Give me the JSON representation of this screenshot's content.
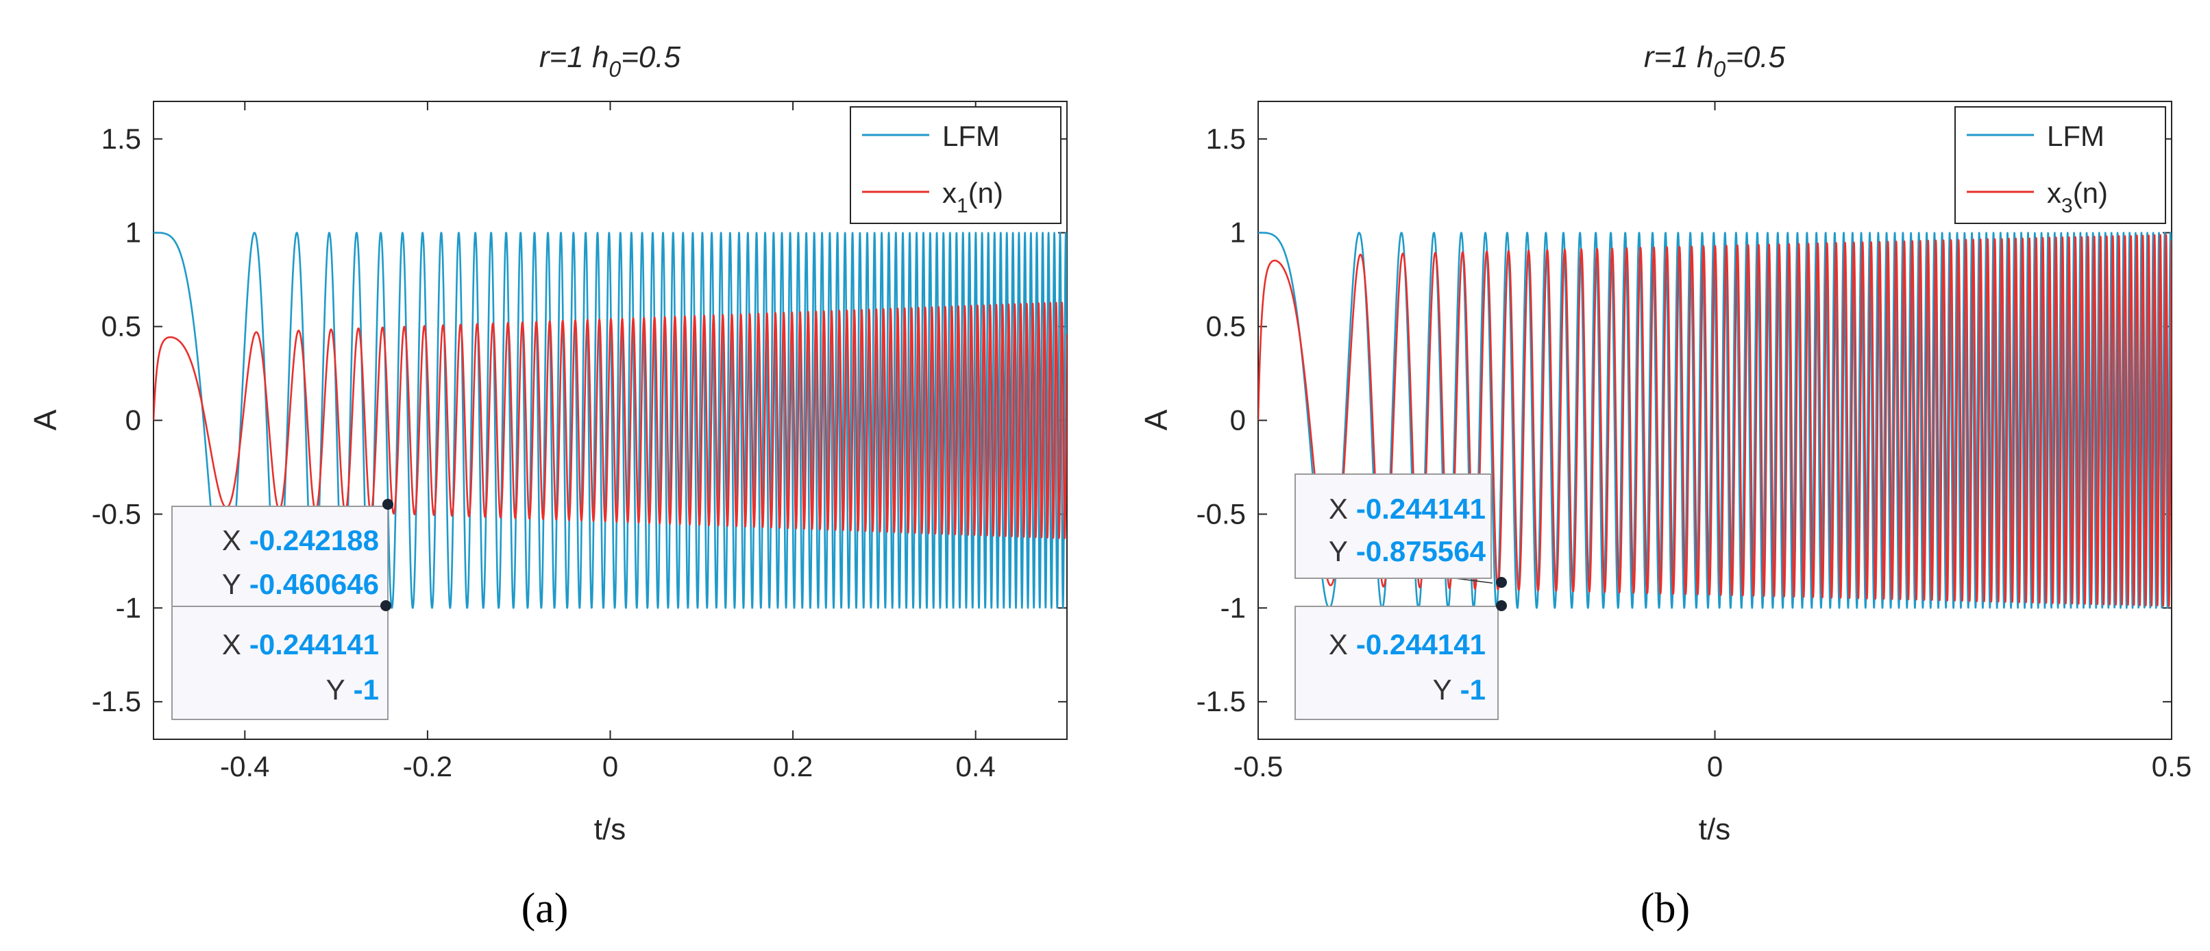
{
  "chart_data": [
    {
      "type": "line",
      "panel_label": "(a)",
      "title": "r=1  h0=0.5",
      "title_parts": {
        "pre": "r=1  h",
        "sub": "0",
        "post": "=0.5"
      },
      "xlabel": "t/s",
      "ylabel": "A",
      "xlim": [
        -0.5,
        0.5
      ],
      "ylim": [
        -1.7,
        1.7
      ],
      "xticks": [
        -0.4,
        -0.2,
        0,
        0.2,
        0.4
      ],
      "xtick_labels": [
        "-0.4",
        "-0.2",
        "0",
        "0.2",
        "0.4"
      ],
      "yticks": [
        1.5,
        1,
        0.5,
        0,
        -0.5,
        -1,
        -1.5
      ],
      "ytick_labels": [
        "1.5",
        "1",
        "0.5",
        "0",
        "-0.5",
        "-1",
        "-1.5"
      ],
      "legend_position": "top-right",
      "series": [
        {
          "name": "LFM",
          "legend_parts": {
            "pre": "LFM",
            "sub": "",
            "post": ""
          },
          "color": "#1f9ac9",
          "model": "lfm",
          "t0": -0.5,
          "f0": 0.2,
          "rate": 160,
          "amp": 1.0
        },
        {
          "name": "x1(n)",
          "legend_parts": {
            "pre": "x",
            "sub": "1",
            "post": "(n)"
          },
          "color": "#e8302c",
          "model": "filtered",
          "t0": -0.5,
          "f0": 0.2,
          "rate": 160,
          "amp_start": 0.45,
          "amp_end": 0.63,
          "lag": 0.002
        }
      ],
      "datatips": [
        {
          "x": -0.242188,
          "y": -0.460646,
          "x_label": "X",
          "x_value": "-0.242188",
          "y_label": "Y",
          "y_value": "-0.460646",
          "placement": "above-left"
        },
        {
          "x": -0.244141,
          "y": -1,
          "x_label": "X",
          "x_value": "-0.244141",
          "y_label": "Y",
          "y_value": "-1",
          "placement": "below-left"
        }
      ]
    },
    {
      "type": "line",
      "panel_label": "(b)",
      "title": "r=1 h0=0.5",
      "title_parts": {
        "pre": "r=1 h",
        "sub": "0",
        "post": "=0.5"
      },
      "xlabel": "t/s",
      "ylabel": "A",
      "xlim": [
        -0.5,
        0.5
      ],
      "ylim": [
        -1.7,
        1.7
      ],
      "xticks": [
        -0.5,
        0,
        0.5
      ],
      "xtick_labels": [
        "-0.5",
        "0",
        "0.5"
      ],
      "yticks": [
        1.5,
        1,
        0.5,
        0,
        -0.5,
        -1,
        -1.5
      ],
      "ytick_labels": [
        "1.5",
        "1",
        "0.5",
        "0",
        "-0.5",
        "-1",
        "-1.5"
      ],
      "legend_position": "top-right",
      "series": [
        {
          "name": "LFM",
          "legend_parts": {
            "pre": "LFM",
            "sub": "",
            "post": ""
          },
          "color": "#1f9ac9",
          "model": "lfm",
          "t0": -0.5,
          "f0": 0.2,
          "rate": 160,
          "amp": 1.0
        },
        {
          "name": "x3(n)",
          "legend_parts": {
            "pre": "x",
            "sub": "3",
            "post": "(n)"
          },
          "color": "#e8302c",
          "model": "filtered",
          "t0": -0.5,
          "f0": 0.2,
          "rate": 160,
          "amp_start": 0.87,
          "amp_end": 0.99,
          "lag": 0.0015
        }
      ],
      "datatips": [
        {
          "x": -0.244141,
          "y": -0.875564,
          "x_label": "X",
          "x_value": "-0.244141",
          "y_label": "Y",
          "y_value": "-0.875564",
          "placement": "above-left"
        },
        {
          "x": -0.244141,
          "y": -1,
          "x_label": "X",
          "x_value": "-0.244141",
          "y_label": "Y",
          "y_value": "-1",
          "placement": "below-left"
        }
      ]
    }
  ]
}
